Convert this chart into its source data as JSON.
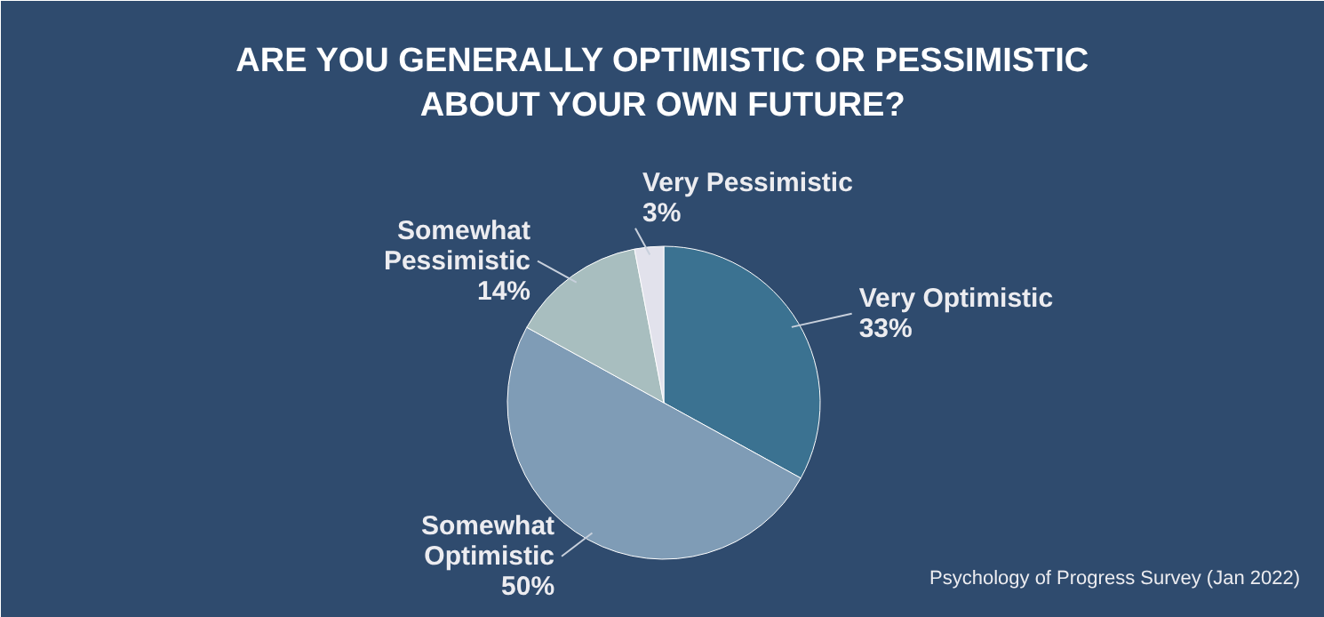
{
  "chart_data": {
    "type": "pie",
    "title": "ARE YOU GENERALLY OPTIMISTIC OR PESSIMISTIC\nABOUT YOUR OWN FUTURE?",
    "categories": [
      "Very Optimistic",
      "Somewhat Optimistic",
      "Somewhat Pessimistic",
      "Very Pessimistic"
    ],
    "values": [
      33,
      50,
      14,
      3
    ],
    "value_labels": [
      "33%",
      "50%",
      "14%",
      "3%"
    ],
    "colors": [
      "#3b7291",
      "#7f9cb6",
      "#a8bebf",
      "#e2e2ec"
    ],
    "annotations": [
      "Psychology of Progress Survey (Jan 2022)"
    ]
  }
}
